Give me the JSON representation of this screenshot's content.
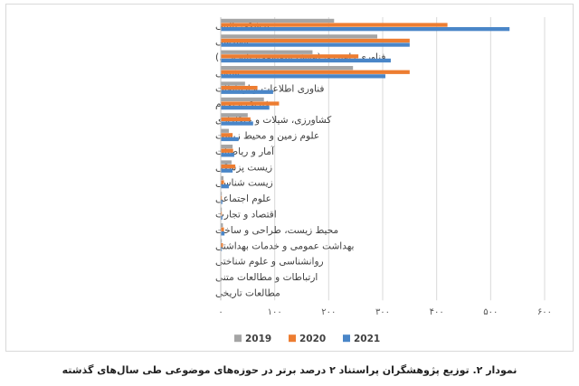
{
  "caption": "نمودار ۲. توزیع پژوهشگران پراستناد ۲ درصد برتر در حوزه‌های موضوعی طی سال‌های گذشته",
  "chart_data": {
    "type": "bar",
    "orientation": "horizontal",
    "title": "",
    "xlabel": "",
    "ylabel": "",
    "xlim": [
      0,
      600
    ],
    "ticks": [
      0,
      100,
      200,
      300,
      400,
      500,
      600
    ],
    "tick_labels": [
      "۰",
      "۱۰۰",
      "۲۰۰",
      "۳۰۰",
      "۴۰۰",
      "۵۰۰",
      "۶۰۰"
    ],
    "grid": true,
    "legend_position": "bottom",
    "categories": [
      "پزشکی بالینی",
      "مهندسی",
      "فناوری راهبردی (هوش مصنوعی، نانو و ...)",
      "شیمی",
      "فناوری اطلاعات و ارتباطات",
      "فیزیک و نجوم",
      "کشاورزی، شیلات و جنگلداری",
      "علوم زمین و محیط زیست",
      "آمار و ریاضیات",
      "زیست پزشکی",
      "زیست شناسی",
      "علوم اجتماعی",
      "اقتصاد و تجارت",
      "محیط زیست، طراحی و ساخت",
      "بهداشت عمومی و خدمات بهداشتی",
      "روانشناسی و علوم شناختی",
      "ارتباطات و مطالعات متنی",
      "مطالعات تاریخی"
    ],
    "series": [
      {
        "name": "2019",
        "color": "#a5a5a5",
        "values": [
          210,
          290,
          170,
          245,
          45,
          80,
          50,
          15,
          22,
          20,
          5,
          2,
          2,
          4,
          2,
          0,
          0,
          0
        ]
      },
      {
        "name": "2020",
        "color": "#ed7d31",
        "values": [
          420,
          350,
          255,
          350,
          68,
          108,
          55,
          22,
          23,
          27,
          6,
          2,
          2,
          6,
          4,
          0,
          0,
          0
        ]
      },
      {
        "name": "2021",
        "color": "#4a86c8",
        "values": [
          535,
          350,
          315,
          305,
          97,
          90,
          60,
          33,
          25,
          22,
          15,
          3,
          3,
          7,
          2,
          0,
          0,
          0
        ]
      }
    ]
  }
}
